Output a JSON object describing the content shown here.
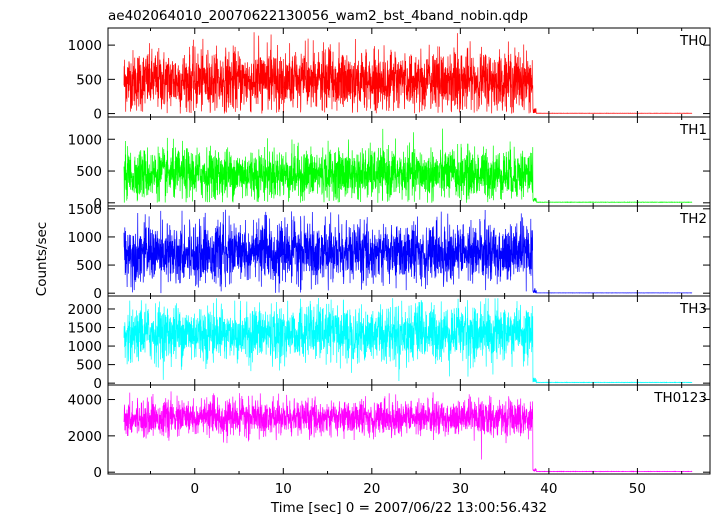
{
  "chart_data": {
    "type": "line",
    "title": "ae402064010_20070622130056_wam2_bst_4band_nobin.qdp",
    "xlabel": "Time [sec] 0 = 2007/06/22 13:00:56.432",
    "ylabel": "Counts/sec",
    "xlim": [
      -9.8,
      58.2
    ],
    "x_ticks": [
      0,
      10,
      20,
      30,
      40,
      50
    ],
    "x_tick_labels": [
      "0",
      "10",
      "20",
      "30",
      "40",
      "50"
    ],
    "signal_end": 38.2,
    "data_end": 56.2,
    "data_start": -8.0,
    "panels": [
      {
        "name": "TH0",
        "color": "#ff0000",
        "ylim": [
          -50,
          1250
        ],
        "yticks": [
          0,
          500,
          1000
        ],
        "ytick_labels": [
          "0",
          "500",
          "1000"
        ],
        "burst_mean": 480,
        "burst_spread": 220,
        "burst_max": 1200,
        "tail_level": 5
      },
      {
        "name": "TH1",
        "color": "#00ff00",
        "ylim": [
          -50,
          1350
        ],
        "yticks": [
          0,
          500,
          1000
        ],
        "ytick_labels": [
          "0",
          "500",
          "1000"
        ],
        "burst_mean": 450,
        "burst_spread": 200,
        "burst_max": 1200,
        "tail_level": 10
      },
      {
        "name": "TH2",
        "color": "#0000ff",
        "ylim": [
          -50,
          1550
        ],
        "yticks": [
          0,
          500,
          1000,
          1500
        ],
        "ytick_labels": [
          "0",
          "500",
          "1000",
          "1500"
        ],
        "burst_mean": 720,
        "burst_spread": 260,
        "burst_max": 1500,
        "tail_level": 5
      },
      {
        "name": "TH3",
        "color": "#00ffff",
        "ylim": [
          -50,
          2350
        ],
        "yticks": [
          0,
          500,
          1000,
          1500,
          2000
        ],
        "ytick_labels": [
          "0",
          "500",
          "1000",
          "1500",
          "2000"
        ],
        "burst_mean": 1350,
        "burst_spread": 380,
        "burst_max": 2300,
        "tail_level": 20
      },
      {
        "name": "TH0123",
        "color": "#ff00ff",
        "ylim": [
          -100,
          4800
        ],
        "yticks": [
          0,
          2000,
          4000
        ],
        "ytick_labels": [
          "0",
          "2000",
          "4000"
        ],
        "burst_mean": 3000,
        "burst_spread": 480,
        "burst_max": 4600,
        "tail_level": 40
      }
    ]
  }
}
